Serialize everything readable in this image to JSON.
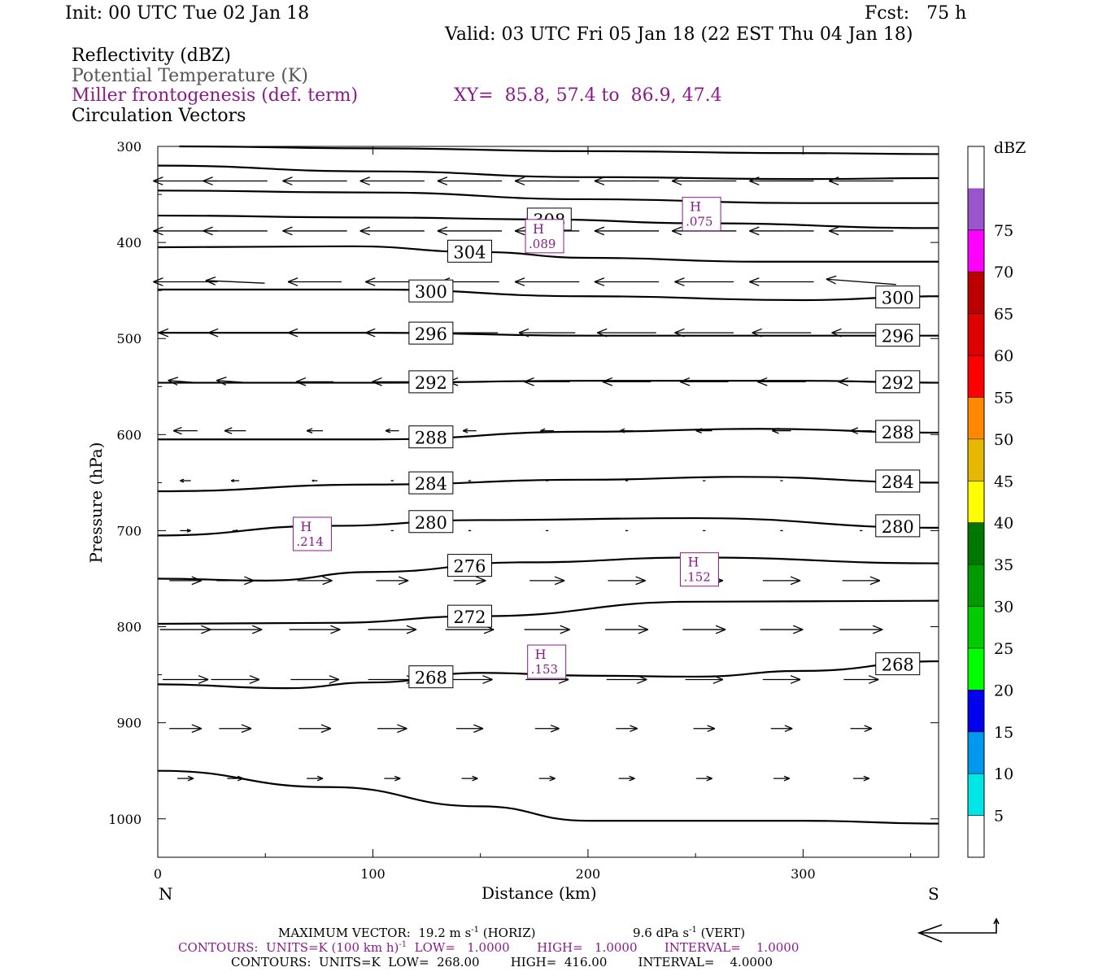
{
  "header": {
    "init": "Init: 00 UTC Tue 02 Jan 18",
    "fcst": "Fcst:   75 h",
    "valid": "Valid: 03 UTC Fri 05 Jan 18 (22 EST Thu 04 Jan 18)"
  },
  "legend_lines": {
    "reflectivity": "Reflectivity (dBZ)",
    "theta": "Potential Temperature (K)",
    "miller": "Miller frontogenesis (def. term)",
    "xy": "XY=  85.8, 57.4 to  86.9, 47.4",
    "circ": "Circulation Vectors"
  },
  "colors": {
    "contour": "#000000",
    "frontogenesis": "#8b1a8b",
    "theta_text": "#555555"
  },
  "chart_data": {
    "type": "cross-section",
    "xlabel": "Distance (km)",
    "ylabel": "Pressure (hPa)",
    "xlim": [
      0,
      363
    ],
    "ylim": [
      1040,
      300
    ],
    "x_ticks": [
      0,
      100,
      200,
      300
    ],
    "y_ticks": [
      300,
      400,
      500,
      600,
      700,
      800,
      900,
      1000
    ],
    "end_left": "N",
    "end_right": "S",
    "theta_contours": [
      {
        "label": "308",
        "points": [
          [
            10,
            300
          ],
          [
            100,
            302
          ],
          [
            200,
            305
          ],
          [
            300,
            307
          ],
          [
            363,
            308
          ]
        ]
      },
      {
        "label": "",
        "points": [
          [
            0,
            320
          ],
          [
            100,
            326
          ],
          [
            200,
            332
          ],
          [
            300,
            334
          ],
          [
            363,
            333
          ]
        ]
      },
      {
        "label": "",
        "points": [
          [
            0,
            346
          ],
          [
            100,
            348
          ],
          [
            200,
            355
          ],
          [
            300,
            359
          ],
          [
            363,
            359
          ]
        ]
      },
      {
        "label": "308",
        "points": [
          [
            0,
            372
          ],
          [
            100,
            374
          ],
          [
            180,
            376
          ],
          [
            250,
            380
          ],
          [
            363,
            385
          ]
        ]
      },
      {
        "label": "304",
        "points": [
          [
            0,
            405
          ],
          [
            90,
            404
          ],
          [
            150,
            410
          ],
          [
            200,
            416
          ],
          [
            280,
            420
          ],
          [
            363,
            420
          ]
        ]
      },
      {
        "label": "300",
        "points": [
          [
            0,
            449
          ],
          [
            100,
            449
          ],
          [
            200,
            456
          ],
          [
            300,
            460
          ],
          [
            363,
            456
          ]
        ]
      },
      {
        "label": "296",
        "points": [
          [
            0,
            494
          ],
          [
            100,
            494
          ],
          [
            200,
            497
          ],
          [
            300,
            497
          ],
          [
            363,
            497
          ]
        ]
      },
      {
        "label": "292",
        "points": [
          [
            0,
            546
          ],
          [
            100,
            546
          ],
          [
            200,
            544
          ],
          [
            300,
            544
          ],
          [
            363,
            546
          ]
        ]
      },
      {
        "label": "288",
        "points": [
          [
            0,
            605
          ],
          [
            100,
            605
          ],
          [
            200,
            597
          ],
          [
            280,
            594
          ],
          [
            363,
            598
          ]
        ]
      },
      {
        "label": "284",
        "points": [
          [
            0,
            659
          ],
          [
            100,
            652
          ],
          [
            200,
            647
          ],
          [
            270,
            644
          ],
          [
            363,
            650
          ]
        ]
      },
      {
        "label": "280",
        "points": [
          [
            0,
            705
          ],
          [
            80,
            695
          ],
          [
            150,
            689
          ],
          [
            250,
            687
          ],
          [
            363,
            697
          ]
        ]
      },
      {
        "label": "276",
        "points": [
          [
            0,
            750
          ],
          [
            50,
            752
          ],
          [
            100,
            743
          ],
          [
            170,
            733
          ],
          [
            250,
            728
          ],
          [
            363,
            734
          ]
        ]
      },
      {
        "label": "272",
        "points": [
          [
            0,
            797
          ],
          [
            80,
            796
          ],
          [
            150,
            789
          ],
          [
            250,
            774
          ],
          [
            363,
            773
          ]
        ]
      },
      {
        "label": "268",
        "points": [
          [
            0,
            860
          ],
          [
            60,
            864
          ],
          [
            100,
            858
          ],
          [
            150,
            848
          ],
          [
            200,
            851
          ],
          [
            250,
            852
          ],
          [
            300,
            846
          ],
          [
            363,
            836
          ]
        ]
      },
      {
        "label": "",
        "points": [
          [
            0,
            950
          ],
          [
            80,
            967
          ],
          [
            150,
            987
          ],
          [
            200,
            1002
          ],
          [
            300,
            1002
          ],
          [
            363,
            1005
          ]
        ]
      }
    ],
    "frontogenesis_maxima": [
      {
        "label": "H",
        "value": ".075",
        "x": 253,
        "p": 370
      },
      {
        "label": "H",
        "value": ".089",
        "x": 180,
        "p": 393
      },
      {
        "label": "H",
        "value": ".214",
        "x": 72,
        "p": 703
      },
      {
        "label": "H",
        "value": ".152",
        "x": 252,
        "p": 740
      },
      {
        "label": "H",
        "value": ".153",
        "x": 181,
        "p": 836
      }
    ],
    "vectors": [
      {
        "p": 336,
        "xs": [
          0,
          36,
          73,
          109,
          145,
          181,
          218,
          254,
          290,
          327,
          363
        ],
        "u": [
          -24,
          -24,
          -24,
          -24,
          -24,
          -24,
          -24,
          -24,
          -24,
          -24,
          -24
        ],
        "w": [
          0,
          0,
          0,
          0,
          0,
          0,
          0,
          0,
          0,
          0,
          0
        ]
      },
      {
        "p": 388,
        "xs": [
          0,
          36,
          73,
          109,
          145,
          181,
          218,
          254,
          290,
          327,
          363
        ],
        "u": [
          -24,
          -24,
          -24,
          -24,
          -24,
          -24,
          -24,
          -24,
          -24,
          -24,
          -27
        ],
        "w": [
          0,
          0,
          0,
          0,
          0,
          0,
          0,
          0,
          0,
          0,
          -1
        ]
      },
      {
        "p": 441,
        "xs": [
          0,
          36,
          73,
          109,
          145,
          181,
          218,
          254,
          290,
          327,
          363
        ],
        "u": [
          -24,
          -22,
          -20,
          -20,
          -22,
          -24,
          -24,
          -22,
          -24,
          -26,
          -30
        ],
        "w": [
          0,
          -1,
          0,
          0,
          0,
          0,
          0,
          0,
          0,
          -2,
          -2
        ]
      },
      {
        "p": 494,
        "xs": [
          0,
          36,
          73,
          109,
          145,
          181,
          218,
          254,
          290,
          327,
          363
        ],
        "u": [
          -20,
          -20,
          -20,
          -20,
          -21,
          -21,
          -22,
          -22,
          -22,
          -22,
          -24
        ],
        "w": [
          0,
          0,
          0,
          0,
          0,
          0,
          0,
          0,
          0,
          0,
          0
        ]
      },
      {
        "p": 545,
        "xs": [
          0,
          36,
          73,
          109,
          145,
          181,
          218,
          254,
          290,
          327,
          363
        ],
        "u": [
          -13,
          -14,
          -14,
          -15,
          -16,
          -17,
          -18,
          -18,
          -18,
          -17,
          -12
        ],
        "w": [
          -1,
          -1,
          0,
          0,
          0,
          0,
          0,
          0,
          0,
          0,
          0
        ]
      },
      {
        "p": 596,
        "xs": [
          0,
          36,
          73,
          109,
          145,
          181,
          218,
          254,
          290,
          327,
          363
        ],
        "u": [
          -9,
          -8,
          -6,
          -5,
          -5,
          -5,
          -5,
          -6,
          -7,
          -8,
          -8
        ],
        "w": [
          0,
          0,
          0,
          0,
          0,
          0,
          0,
          0,
          0,
          0,
          0
        ]
      },
      {
        "p": 648,
        "xs": [
          0,
          36,
          73,
          109,
          145,
          181,
          218,
          254,
          290,
          327,
          363
        ],
        "u": [
          -4,
          -3,
          -2,
          -1,
          -1,
          -1,
          -1,
          -1,
          -1,
          -1,
          -1
        ],
        "w": [
          0,
          0,
          0,
          0,
          0,
          0,
          0,
          0,
          0,
          0,
          0
        ]
      },
      {
        "p": 700,
        "xs": [
          0,
          36,
          73,
          109,
          145,
          181,
          218,
          254,
          290,
          327,
          363
        ],
        "u": [
          4,
          2,
          1,
          1,
          1,
          1,
          1,
          1,
          1,
          1,
          1
        ],
        "w": [
          0,
          0,
          0,
          0,
          0,
          0,
          0,
          0,
          0,
          0,
          0
        ]
      },
      {
        "p": 752,
        "xs": [
          0,
          36,
          73,
          109,
          145,
          181,
          218,
          254,
          290,
          327,
          363
        ],
        "u": [
          12,
          14,
          13,
          12,
          12,
          13,
          14,
          14,
          14,
          14,
          14
        ],
        "w": [
          0,
          0,
          0,
          0,
          0,
          0,
          0,
          0,
          0,
          0,
          0
        ]
      },
      {
        "p": 803,
        "xs": [
          0,
          36,
          73,
          109,
          145,
          181,
          218,
          254,
          290,
          327,
          363
        ],
        "u": [
          19,
          20,
          19,
          18,
          18,
          17,
          16,
          16,
          16,
          16,
          16
        ],
        "w": [
          0,
          0,
          0,
          0,
          0,
          0,
          0,
          0,
          0,
          0,
          0
        ]
      },
      {
        "p": 855,
        "xs": [
          0,
          36,
          73,
          109,
          145,
          181,
          218,
          254,
          290,
          327,
          363
        ],
        "u": [
          17,
          18,
          18,
          18,
          17,
          16,
          15,
          14,
          14,
          13,
          12
        ],
        "w": [
          0,
          0,
          0,
          0,
          0,
          0,
          0,
          0,
          0,
          0,
          0
        ]
      },
      {
        "p": 906,
        "xs": [
          0,
          36,
          73,
          109,
          145,
          181,
          218,
          254,
          290,
          327,
          363
        ],
        "u": [
          12,
          12,
          12,
          11,
          10,
          9,
          8,
          8,
          8,
          8,
          8
        ],
        "w": [
          0,
          0,
          0,
          0,
          0,
          0,
          0,
          0,
          0,
          0,
          0
        ]
      },
      {
        "p": 958,
        "xs": [
          0,
          36,
          73,
          109,
          145,
          181,
          218,
          254,
          290,
          327,
          363
        ],
        "u": [
          6,
          6,
          6,
          6,
          6,
          6,
          6,
          6,
          6,
          6,
          6
        ],
        "w": [
          0,
          0,
          0,
          0,
          0,
          0,
          0,
          0,
          0,
          0,
          0
        ]
      }
    ],
    "colorbar": {
      "unit": "dBZ",
      "levels": [
        5,
        10,
        15,
        20,
        25,
        30,
        35,
        40,
        45,
        50,
        55,
        60,
        65,
        70,
        75
      ],
      "colors": [
        "#ffffff",
        "#00e5e5",
        "#0099ee",
        "#0000ee",
        "#00ff00",
        "#00cc00",
        "#009900",
        "#007700",
        "#ffff00",
        "#e6b800",
        "#ff8800",
        "#ff0000",
        "#dd0000",
        "#bb0000",
        "#ff00ff",
        "#9955cc",
        "#ffffff"
      ]
    }
  },
  "footer": {
    "max_vector": "MAXIMUM VECTOR:  19.2 m s",
    "max_vector_unit": "-1",
    "max_vector_horiz": " (HORIZ)",
    "max_vector_vert": "9.6 dPa s",
    "max_vector_vert_unit": "-1",
    "max_vector_vert_tail": " (VERT)",
    "contours1": "CONTOURS:  UNITS=K (100 km h)",
    "contours1_unit": "-1",
    "contours1_tail": "  LOW=   1.0000       HIGH=   1.0000       INTERVAL=    1.0000",
    "contours2": "CONTOURS:  UNITS=K  LOW=  268.00        HIGH=  416.00        INTERVAL=    4.0000"
  }
}
